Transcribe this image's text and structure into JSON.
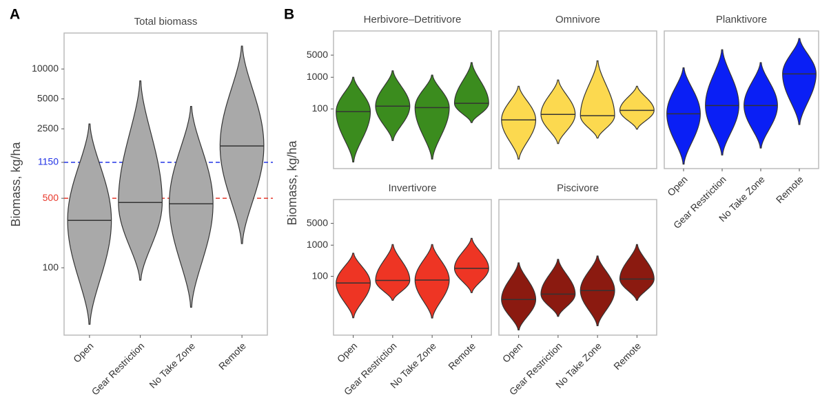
{
  "chart_data": [
    {
      "type": "violin",
      "panel": "A",
      "title": "Total biomass",
      "y_label": "Biomass, kg/ha",
      "log_y": true,
      "color": "#a9a9a9",
      "categories": [
        "Open",
        "Gear Restriction",
        "No Take Zone",
        "Remote"
      ],
      "mins": [
        27,
        75,
        40,
        175
      ],
      "medians": [
        300,
        454,
        440,
        1680
      ],
      "maxs": [
        2800,
        7600,
        4200,
        17000
      ],
      "ylim": [
        21,
        23000
      ],
      "yticks": [
        100,
        500,
        1150,
        2500,
        5000,
        10000
      ],
      "hlines": [
        {
          "value": 500,
          "color": "#e8382b"
        },
        {
          "value": 1150,
          "color": "#2233e6"
        }
      ]
    },
    {
      "type": "violin",
      "panel": "B",
      "title": "Herbivore–Detritivore",
      "y_label": "Biomass, kg/ha",
      "log_y": true,
      "color": "#3b8c1e",
      "mins": [
        2.1,
        10,
        2.6,
        37
      ],
      "medians": [
        82,
        122,
        110,
        150
      ],
      "maxs": [
        1000,
        1600,
        1170,
        2900
      ],
      "ylim": [
        1.3,
        29000
      ],
      "yticks": [
        100,
        1000,
        5000
      ]
    },
    {
      "type": "violin",
      "title": "Omnivore",
      "log_y": true,
      "color": "#fcd94f",
      "mins": [
        2.6,
        8,
        12,
        23
      ],
      "medians": [
        45,
        67,
        61,
        90
      ],
      "maxs": [
        520,
        820,
        3300,
        520
      ],
      "ylim": [
        1.3,
        29000
      ]
    },
    {
      "type": "violin",
      "title": "Planktivore",
      "log_y": true,
      "color": "#0a1ff5",
      "categories": [
        "Open",
        "Gear Restriction",
        "No Take Zone",
        "Remote"
      ],
      "mins": [
        1.8,
        3.5,
        5.8,
        32
      ],
      "medians": [
        70,
        128,
        128,
        1280
      ],
      "maxs": [
        2000,
        7400,
        2900,
        16700
      ],
      "ylim": [
        1.3,
        29000
      ]
    },
    {
      "type": "violin",
      "title": "Invertivore",
      "log_y": true,
      "color": "#ee3524",
      "categories": [
        "Open",
        "Gear Restriction",
        "No Take Zone",
        "Remote"
      ],
      "mins": [
        4.7,
        17,
        4.6,
        30
      ],
      "medians": [
        61,
        74,
        76,
        180
      ],
      "maxs": [
        550,
        1050,
        1050,
        1650
      ],
      "ylim": [
        1.3,
        29000
      ],
      "yticks": [
        100,
        1000,
        5000
      ]
    },
    {
      "type": "violin",
      "title": "Piscivore",
      "log_y": true,
      "color": "#8b1a10",
      "categories": [
        "Open",
        "Gear Restriction",
        "No Take Zone",
        "Remote"
      ],
      "mins": [
        1.9,
        5.2,
        2.6,
        17
      ],
      "medians": [
        18,
        27,
        35,
        82
      ],
      "maxs": [
        270,
        350,
        450,
        1050
      ],
      "ylim": [
        1.3,
        29000
      ]
    }
  ]
}
